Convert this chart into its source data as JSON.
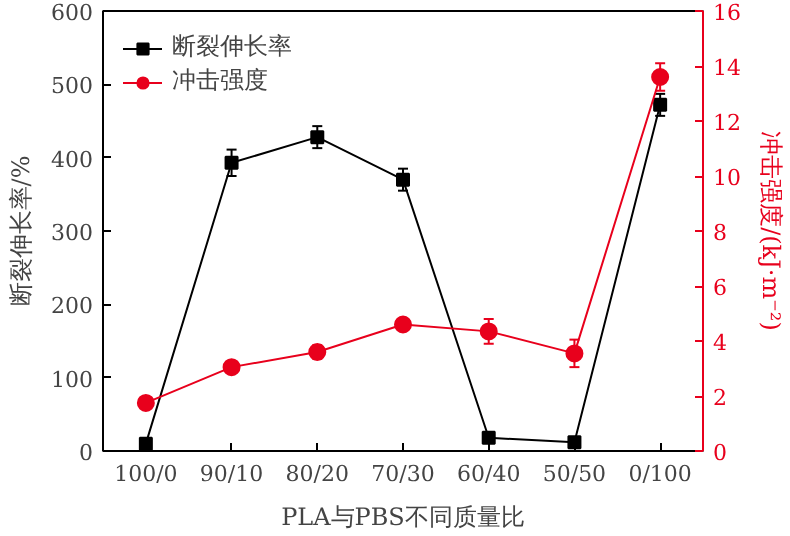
{
  "chart_data": {
    "type": "line",
    "categories": [
      "100/0",
      "90/10",
      "80/20",
      "70/30",
      "60/40",
      "50/50",
      "0/100"
    ],
    "xlabel": "PLA与PBS不同质量比",
    "ylabel": "断裂伸长率/%",
    "y2label": "冲击强度/(kJ·m⁻²)",
    "series": [
      {
        "name": "断裂伸长率",
        "color": "#000000",
        "marker": "square",
        "values": [
          10,
          393,
          428,
          370,
          18,
          12,
          472
        ],
        "errors": [
          null,
          18,
          15,
          15,
          null,
          null,
          15
        ]
      },
      {
        "name": "冲击强度",
        "color": "#e8001c",
        "marker": "circle",
        "axis": "y2",
        "values": [
          1.75,
          3.05,
          3.6,
          4.6,
          4.35,
          3.55,
          13.6
        ],
        "errors": [
          null,
          0.15,
          0.25,
          0.15,
          0.45,
          0.5,
          0.5
        ]
      }
    ],
    "ylim": [
      0,
      600
    ],
    "yticks": [
      0,
      100,
      200,
      300,
      400,
      500,
      600
    ],
    "y2lim": [
      0,
      16
    ],
    "y2ticks": [
      0,
      2,
      4,
      6,
      8,
      10,
      12,
      14,
      16
    ],
    "legend": "top left",
    "grid": false,
    "line_style": "solid"
  }
}
